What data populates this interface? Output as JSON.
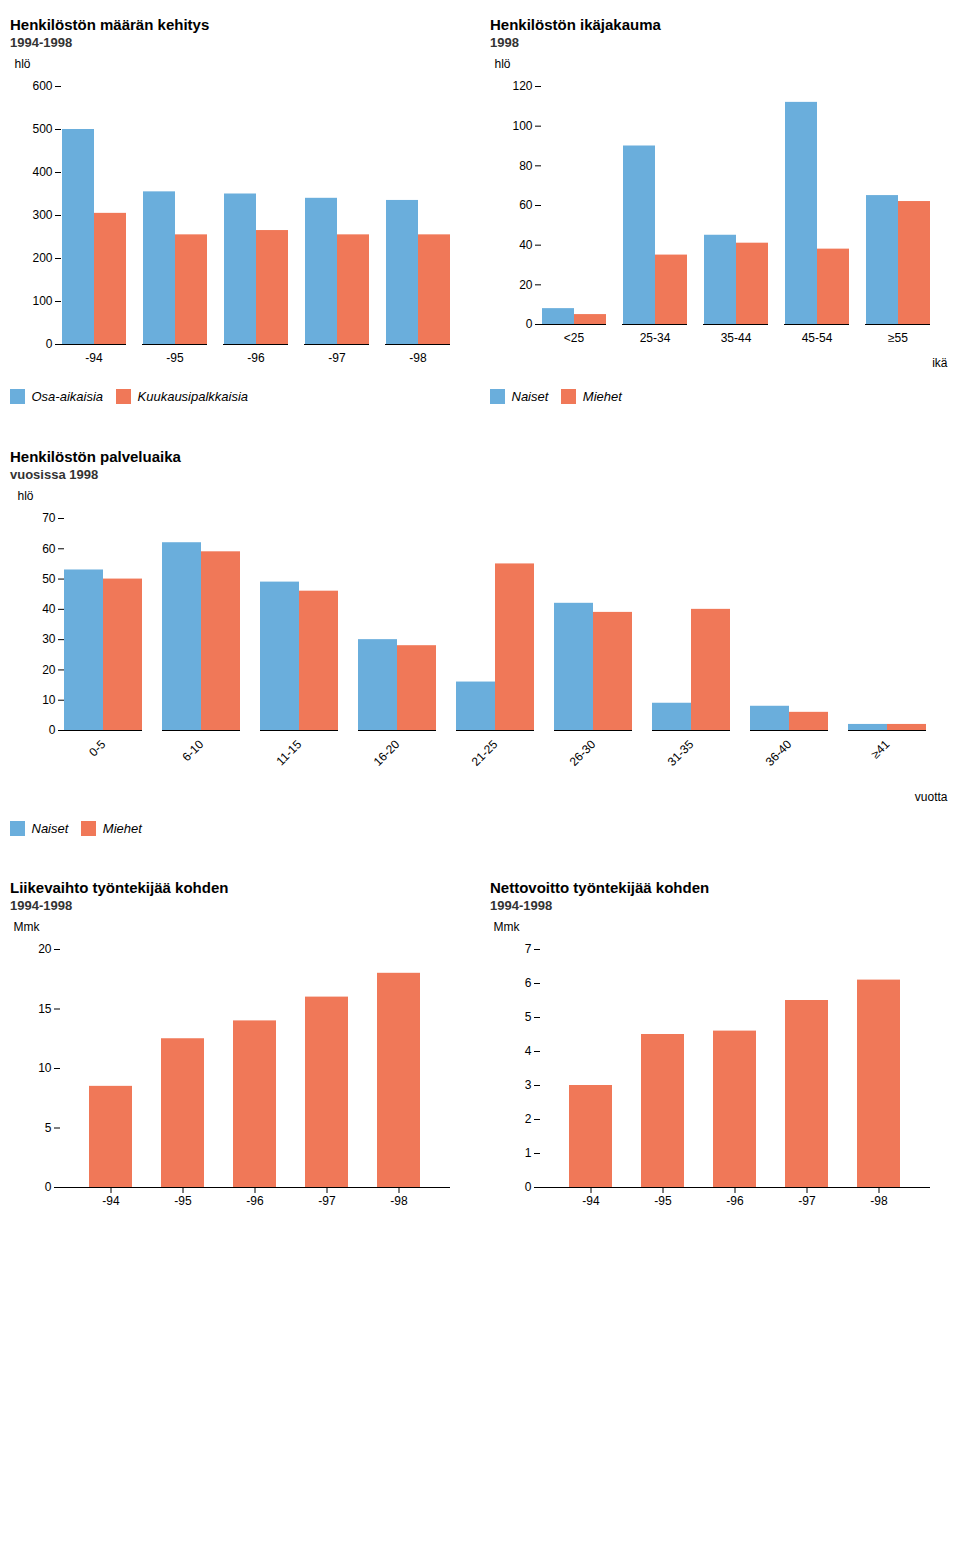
{
  "chart_data": [
    {
      "type": "bar",
      "title": "Henkilöstön määrän kehitys",
      "subtitle": "1994-1998",
      "categories": [
        "-94",
        "-95",
        "-96",
        "-97",
        "-98"
      ],
      "series": [
        {
          "name": "Osa-aikaisia",
          "color": "#6aaedc",
          "values": [
            500,
            355,
            350,
            340,
            335
          ]
        },
        {
          "name": "Kuukausipalkkaisia",
          "color": "#f07858",
          "values": [
            305,
            255,
            265,
            255,
            255
          ]
        }
      ],
      "ylabel": "hlö",
      "ylim": [
        0,
        600
      ],
      "yticks": [
        0,
        100,
        200,
        300,
        400,
        500,
        600
      ],
      "grid": false,
      "legend": "bottom"
    },
    {
      "type": "bar",
      "title": "Henkilöstön ikäjakauma",
      "subtitle": "1998",
      "categories": [
        "<25",
        "25-34",
        "35-44",
        "45-54",
        "≥55"
      ],
      "series": [
        {
          "name": "Naiset",
          "color": "#6aaedc",
          "values": [
            8,
            90,
            45,
            112,
            65
          ]
        },
        {
          "name": "Miehet",
          "color": "#f07858",
          "values": [
            5,
            35,
            41,
            38,
            62
          ]
        }
      ],
      "xlabel": "ikä",
      "ylabel": "hlö",
      "ylim": [
        0,
        120
      ],
      "yticks": [
        0,
        20,
        40,
        60,
        80,
        100,
        120
      ],
      "grid": false,
      "legend": "bottom"
    },
    {
      "type": "bar",
      "title": "Henkilöstön palveluaika",
      "subtitle": "vuosissa 1998",
      "categories": [
        "0-5",
        "6-10",
        "11-15",
        "16-20",
        "21-25",
        "26-30",
        "31-35",
        "36-40",
        "≥41"
      ],
      "series": [
        {
          "name": "Naiset",
          "color": "#6aaedc",
          "values": [
            53,
            62,
            49,
            30,
            16,
            42,
            9,
            8,
            2
          ]
        },
        {
          "name": "Miehet",
          "color": "#f07858",
          "values": [
            50,
            59,
            46,
            28,
            55,
            39,
            40,
            6,
            2
          ]
        }
      ],
      "xlabel": "vuotta",
      "ylabel": "hlö",
      "ylim": [
        0,
        70
      ],
      "yticks": [
        0,
        10,
        20,
        30,
        40,
        50,
        60,
        70
      ],
      "grid": false,
      "legend": "bottom"
    },
    {
      "type": "bar",
      "title": "Liikevaihto työntekijää kohden",
      "subtitle": "1994-1998",
      "categories": [
        "-94",
        "-95",
        "-96",
        "-97",
        "-98"
      ],
      "values": [
        8.5,
        12.5,
        14.0,
        16.0,
        18.0
      ],
      "color": "#f07858",
      "ylabel": "Mmk",
      "ylim": [
        0,
        20
      ],
      "yticks": [
        0,
        5,
        10,
        15,
        20
      ],
      "grid": false
    },
    {
      "type": "bar",
      "title": "Nettovoitto työntekijää kohden",
      "subtitle": "1994-1998",
      "categories": [
        "-94",
        "-95",
        "-96",
        "-97",
        "-98"
      ],
      "values": [
        3.0,
        4.5,
        4.6,
        5.5,
        6.1
      ],
      "color": "#f07858",
      "ylabel": "Mmk",
      "ylim": [
        0,
        7
      ],
      "yticks": [
        0,
        1,
        2,
        3,
        4,
        5,
        6,
        7
      ],
      "grid": false
    }
  ]
}
